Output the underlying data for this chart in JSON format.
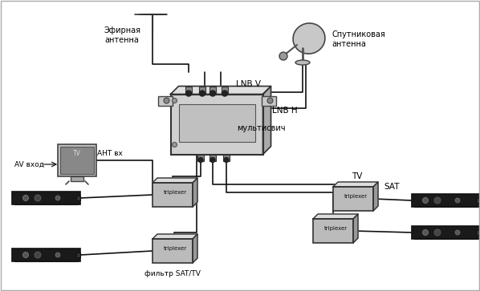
{
  "bg_color": "#ffffff",
  "line_color": "#111111",
  "labels": {
    "aerial_antenna": "Эфирная\nантенна",
    "sat_antenna": "Спутниковая\nантенна",
    "lnb_v": "LNB V",
    "lnb_h": "LNB H",
    "multiswitch": "мультисвич",
    "ant_vx": "АНТ вх",
    "av_vhod": "AV вход",
    "triplexer": "triplexer",
    "filter_sat_tv": "фильтр SAT/TV",
    "tv_label": "TV",
    "sat_label": "SAT"
  },
  "figsize": [
    5.98,
    3.63
  ],
  "dpi": 100
}
